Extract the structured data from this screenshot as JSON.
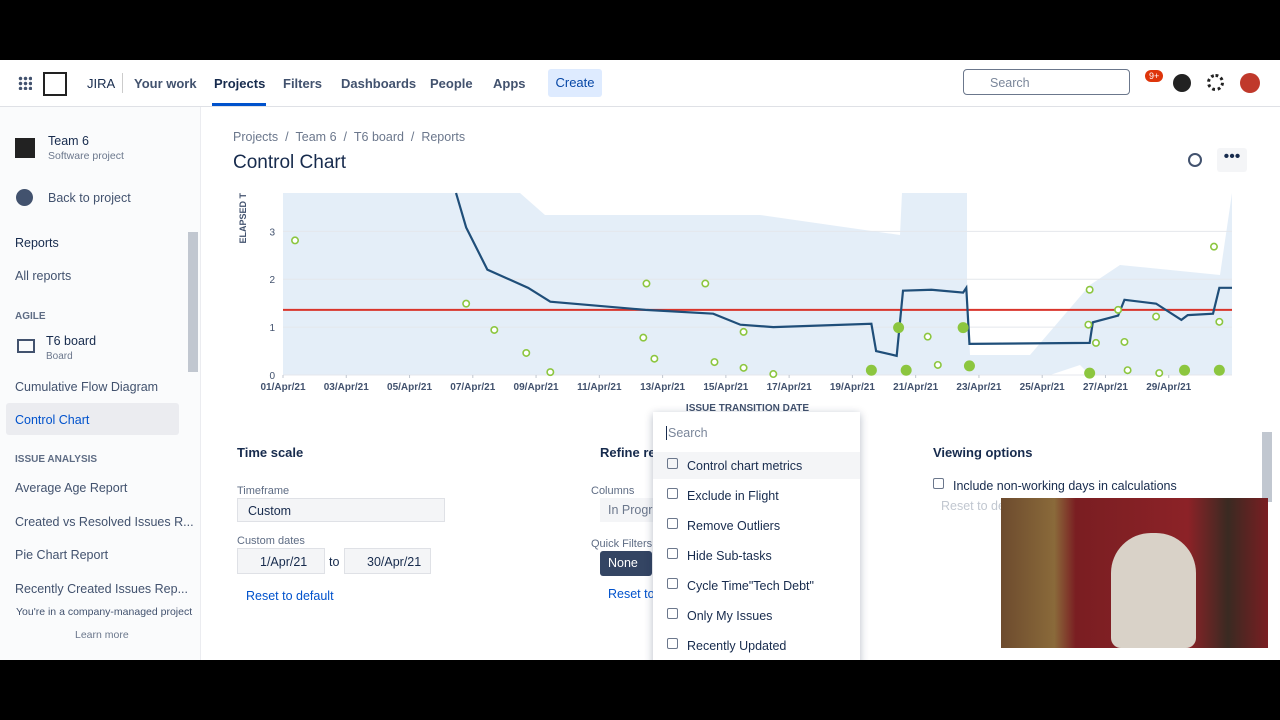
{
  "nav": {
    "brand": "JIRA",
    "items": [
      "Your work",
      "Projects",
      "Filters",
      "Dashboards",
      "People",
      "Apps"
    ],
    "create": "Create",
    "search": "Search",
    "badge": "9+"
  },
  "sidebar": {
    "project": "Team 6",
    "project_type": "Software project",
    "back": "Back to project",
    "reports": "Reports",
    "all_reports": "All reports",
    "agile": "AGILE",
    "board": "T6 board",
    "board_type": "Board",
    "agile_links": [
      "Cumulative Flow Diagram",
      "Control Chart"
    ],
    "analysis": "ISSUE ANALYSIS",
    "analysis_links": [
      "Average Age Report",
      "Created vs Resolved Issues R...",
      "Pie Chart Report",
      "Recently Created Issues Rep..."
    ],
    "footer": "You're in a company-managed project",
    "learn": "Learn more"
  },
  "header": {
    "breadcrumbs": [
      "Projects",
      "Team 6",
      "T6 board",
      "Reports"
    ],
    "title": "Control Chart"
  },
  "chart_data": {
    "type": "scatter",
    "y_label": "ELAPSED T",
    "x_label": "ISSUE TRANSITION DATE",
    "xlim": [
      1,
      31
    ],
    "xticks": [
      {
        "value": 1,
        "label": "01/Apr/21"
      },
      {
        "value": 3,
        "label": "03/Apr/21"
      },
      {
        "value": 5,
        "label": "05/Apr/21"
      },
      {
        "value": 7,
        "label": "07/Apr/21"
      },
      {
        "value": 9,
        "label": "09/Apr/21"
      },
      {
        "value": 11,
        "label": "11/Apr/21"
      },
      {
        "value": 13,
        "label": "13/Apr/21"
      },
      {
        "value": 15,
        "label": "15/Apr/21"
      },
      {
        "value": 17,
        "label": "17/Apr/21"
      },
      {
        "value": 19,
        "label": "19/Apr/21"
      },
      {
        "value": 21,
        "label": "21/Apr/21"
      },
      {
        "value": 23,
        "label": "23/Apr/21"
      },
      {
        "value": 25,
        "label": "25/Apr/21"
      },
      {
        "value": 27,
        "label": "27/Apr/21"
      },
      {
        "value": 29,
        "label": "29/Apr/21"
      }
    ],
    "ylim": [
      0,
      3.8
    ],
    "yticks": [
      0,
      1,
      2,
      3
    ],
    "grid": true,
    "mean": 1.36,
    "mean_color": "#d9342b",
    "rolling": {
      "color": "#1f4e79",
      "x": [
        6.47,
        6.79,
        7.46,
        8.75,
        9.45,
        12.46,
        14.6,
        15.46,
        16.5,
        19.6,
        19.75,
        20.4,
        20.6,
        21.5,
        22.5,
        22.6,
        22.7,
        26.5,
        26.6,
        27.4,
        27.6,
        28.6,
        29.4,
        29.6,
        30.4,
        30.6,
        31
      ],
      "values": [
        3.8,
        3.08,
        2.2,
        1.82,
        1.53,
        1.36,
        1.28,
        1.05,
        1.0,
        1.07,
        0.5,
        0.4,
        1.76,
        1.78,
        1.72,
        1.82,
        0.65,
        0.67,
        1.1,
        1.24,
        1.57,
        1.49,
        1.15,
        1.25,
        1.28,
        1.82,
        1.82
      ]
    },
    "issues": {
      "color": "#8cc63f",
      "x": [
        1.38,
        6.79,
        7.68,
        8.69,
        9.45,
        12.49,
        12.39,
        12.74,
        14.35,
        14.64,
        15.56,
        15.56,
        16.5,
        21.38,
        21.7,
        26.5,
        26.46,
        26.7,
        27.4,
        27.6,
        27.7,
        28.6,
        28.7,
        30.43,
        30.6
      ],
      "values": [
        2.81,
        1.49,
        0.94,
        0.46,
        0.06,
        1.91,
        0.78,
        0.34,
        1.91,
        0.27,
        0.9,
        0.15,
        0.02,
        0.8,
        0.21,
        1.78,
        1.05,
        0.67,
        1.36,
        0.69,
        0.1,
        1.22,
        0.04,
        2.68,
        1.11
      ]
    },
    "clusters": {
      "color": "#8cc63f",
      "x": [
        20.46,
        19.6,
        20.7,
        22.5,
        22.7,
        26.5,
        29.5,
        30.6
      ],
      "values": [
        0.99,
        0.1,
        0.1,
        0.99,
        0.19,
        0.04,
        0.1,
        0.1
      ]
    }
  },
  "time_scale": {
    "title": "Time scale",
    "timeframe": "Timeframe",
    "select": "Custom",
    "custom_dates": "Custom dates",
    "from": "1/Apr/21",
    "to": "to",
    "until": "30/Apr/21",
    "reset": "Reset to default"
  },
  "refine": {
    "title": "Refine re",
    "columns": "Columns",
    "columns_value": "In Progre",
    "quick_filters": "Quick Filters",
    "none": "None",
    "reset": "Reset to"
  },
  "dropdown": {
    "search": "Search",
    "options": [
      "Control chart metrics",
      "Exclude in Flight",
      "Remove Outliers",
      "Hide Sub-tasks",
      "Cycle Time\"Tech Debt\"",
      "Only My Issues",
      "Recently Updated"
    ]
  },
  "viewing": {
    "title": "Viewing options",
    "non_working": "Include non-working days in calculations",
    "reset": "Reset to de"
  }
}
